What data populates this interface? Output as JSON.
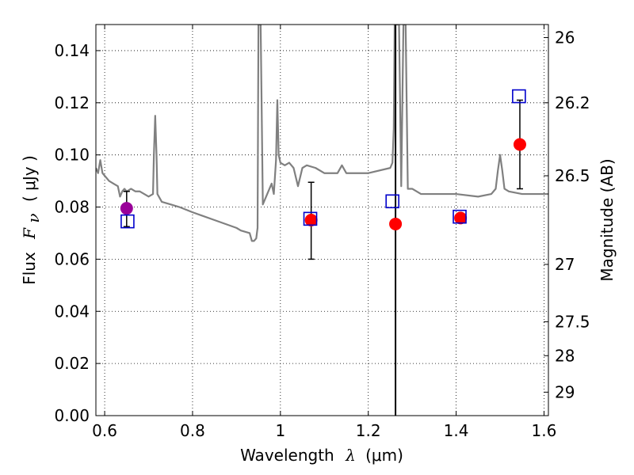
{
  "chart_data": {
    "type": "scatter",
    "xlabel": {
      "pre": "Wavelength",
      "sym": "λ",
      "unit": "(μm)"
    },
    "ylabel": {
      "pre": "Flux",
      "sym": "F",
      "sub": "ν",
      "unit": "( μJy )"
    },
    "y2label": "Magnitude (AB)",
    "xlim": [
      0.58,
      1.61
    ],
    "ylim": [
      0.0,
      0.15
    ],
    "x_ticks": [
      0.6,
      0.8,
      1.0,
      1.2,
      1.4,
      1.6
    ],
    "x_tick_labels": [
      "0.6",
      "0.8",
      "1",
      "1.2",
      "1.4",
      "1.6"
    ],
    "y_ticks": [
      0.0,
      0.02,
      0.04,
      0.06,
      0.08,
      0.1,
      0.12,
      0.14
    ],
    "y_tick_labels": [
      "0.00",
      "0.02",
      "0.04",
      "0.06",
      "0.08",
      "0.10",
      "0.12",
      "0.14"
    ],
    "y2_ticks": [
      {
        "label": "26",
        "flux": 0.145
      },
      {
        "label": "26.2",
        "flux": 0.12
      },
      {
        "label": "26.5",
        "flux": 0.092
      },
      {
        "label": "27",
        "flux": 0.058
      },
      {
        "label": "27.5",
        "flux": 0.036
      },
      {
        "label": "28",
        "flux": 0.023
      },
      {
        "label": "29",
        "flux": 0.009
      }
    ],
    "grid": true,
    "grid_style": "dotted",
    "vertical_line": {
      "x": 1.262,
      "color": "#000000"
    },
    "spectrum": {
      "color": "#808080",
      "x": [
        0.58,
        0.585,
        0.59,
        0.595,
        0.6,
        0.61,
        0.62,
        0.63,
        0.635,
        0.64,
        0.645,
        0.65,
        0.66,
        0.67,
        0.68,
        0.69,
        0.7,
        0.71,
        0.712,
        0.715,
        0.718,
        0.72,
        0.73,
        0.75,
        0.77,
        0.8,
        0.85,
        0.9,
        0.91,
        0.93,
        0.935,
        0.94,
        0.945,
        0.948,
        0.95,
        0.955,
        0.96,
        0.97,
        0.98,
        0.985,
        0.99,
        0.993,
        0.996,
        1.0,
        1.01,
        1.02,
        1.03,
        1.04,
        1.05,
        1.06,
        1.08,
        1.1,
        1.13,
        1.14,
        1.15,
        1.2,
        1.25,
        1.255,
        1.258,
        1.26,
        1.265,
        1.27,
        1.275,
        1.28,
        1.285,
        1.29,
        1.3,
        1.32,
        1.35,
        1.4,
        1.45,
        1.48,
        1.49,
        1.495,
        1.5,
        1.505,
        1.51,
        1.52,
        1.55,
        1.58,
        1.61
      ],
      "y": [
        0.095,
        0.093,
        0.098,
        0.093,
        0.092,
        0.09,
        0.089,
        0.088,
        0.084,
        0.086,
        0.087,
        0.086,
        0.087,
        0.086,
        0.086,
        0.085,
        0.084,
        0.085,
        0.1,
        0.115,
        0.1,
        0.085,
        0.082,
        0.081,
        0.08,
        0.078,
        0.075,
        0.072,
        0.071,
        0.07,
        0.067,
        0.067,
        0.068,
        0.072,
        0.15,
        0.15,
        0.081,
        0.085,
        0.089,
        0.085,
        0.098,
        0.121,
        0.1,
        0.097,
        0.096,
        0.097,
        0.095,
        0.088,
        0.095,
        0.096,
        0.095,
        0.093,
        0.093,
        0.096,
        0.093,
        0.093,
        0.095,
        0.097,
        0.11,
        0.15,
        0.15,
        0.15,
        0.088,
        0.15,
        0.15,
        0.087,
        0.087,
        0.085,
        0.085,
        0.085,
        0.084,
        0.085,
        0.087,
        0.094,
        0.1,
        0.094,
        0.087,
        0.086,
        0.085,
        0.085,
        0.085
      ]
    },
    "observed_points": [
      {
        "x": 0.65,
        "y": 0.0795,
        "color": "#990099",
        "yerr_low": 0.0725,
        "yerr_high": 0.086
      },
      {
        "x": 1.07,
        "y": 0.075,
        "color": "#ff0000",
        "yerr_low": 0.06,
        "yerr_high": 0.0895
      },
      {
        "x": 1.262,
        "y": 0.0735,
        "color": "#ff0000"
      },
      {
        "x": 1.41,
        "y": 0.0758,
        "color": "#ff0000"
      },
      {
        "x": 1.545,
        "y": 0.104,
        "color": "#ff0000",
        "yerr_low": 0.087,
        "yerr_high": 0.121
      }
    ],
    "model_points": [
      {
        "x": 0.652,
        "y": 0.0745
      },
      {
        "x": 1.068,
        "y": 0.0755
      },
      {
        "x": 1.255,
        "y": 0.0822
      },
      {
        "x": 1.408,
        "y": 0.0763
      },
      {
        "x": 1.543,
        "y": 0.1225
      }
    ],
    "model_color": "#0000cc"
  }
}
